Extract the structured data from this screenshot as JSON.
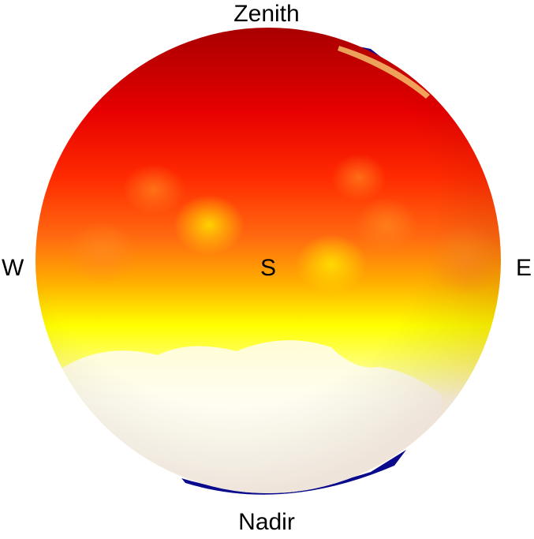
{
  "labels": {
    "top": "Zenith",
    "bottom": "Nadir",
    "left": "W",
    "right": "E",
    "center": "S"
  },
  "colors": {
    "background": "#ffffff",
    "outer_rim": "#0a0a8c",
    "gradient_top": "#b00000",
    "gradient_red": "#ff1a00",
    "gradient_orange": "#ff7a10",
    "gradient_yellow": "#ffff00",
    "gradient_bottom": "#fffdf2"
  }
}
